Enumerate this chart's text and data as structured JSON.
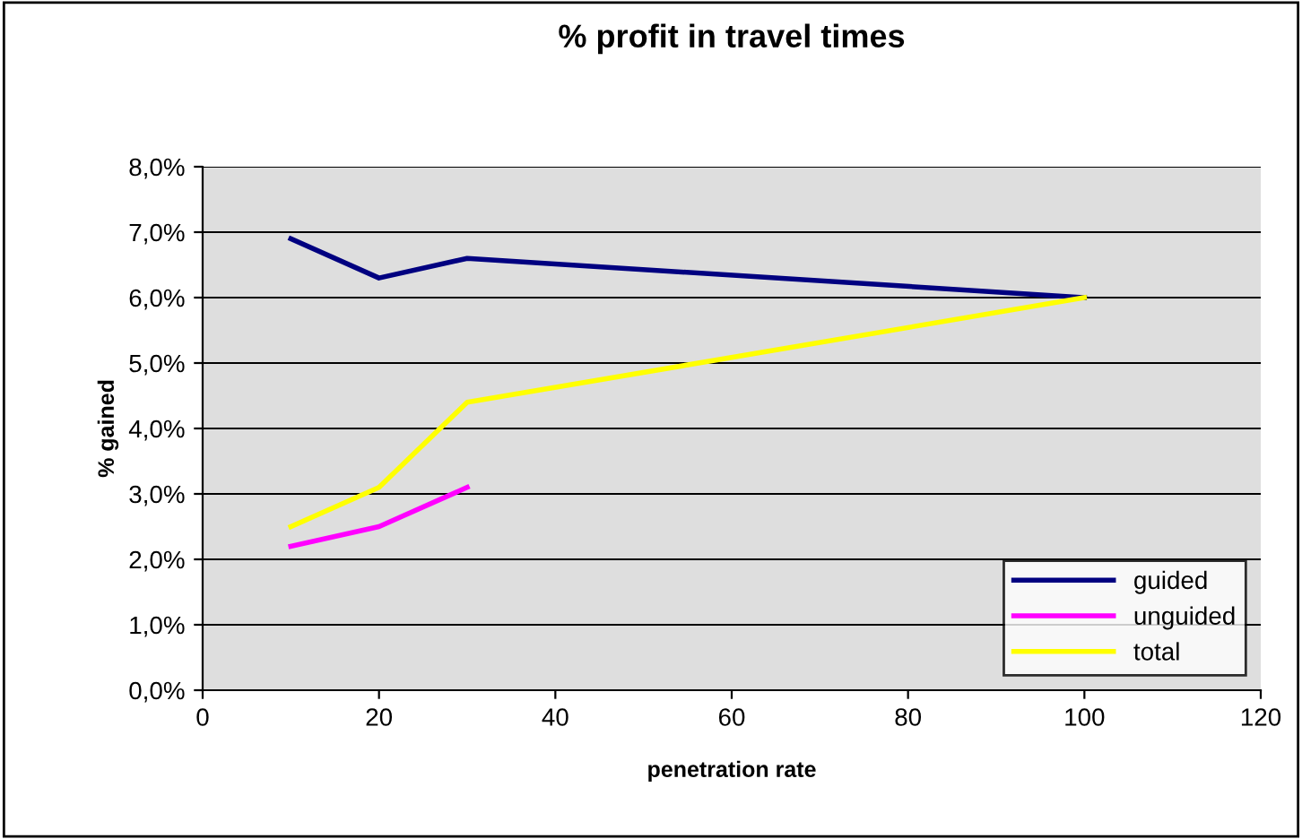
{
  "chart_data": {
    "type": "line",
    "title": "% profit in travel times",
    "xlabel": "penetration rate",
    "ylabel": "% gained",
    "x": [
      10,
      20,
      30,
      100
    ],
    "series": [
      {
        "name": "guided",
        "color": "#000080",
        "values": [
          6.9,
          6.3,
          6.6,
          6.0
        ]
      },
      {
        "name": "unguided",
        "color": "#ff00ff",
        "values": [
          2.2,
          2.5,
          3.1
        ],
        "x": [
          10,
          20,
          30
        ]
      },
      {
        "name": "total",
        "color": "#ffff00",
        "values": [
          2.5,
          3.1,
          4.4,
          6.0
        ]
      }
    ],
    "xlim": [
      0,
      120
    ],
    "xticks": [
      0,
      20,
      40,
      60,
      80,
      100,
      120
    ],
    "ylim": [
      0,
      8
    ],
    "yticks": [
      {
        "value": 0,
        "label": "0,0%"
      },
      {
        "value": 1,
        "label": "1,0%"
      },
      {
        "value": 2,
        "label": "2,0%"
      },
      {
        "value": 3,
        "label": "3,0%"
      },
      {
        "value": 4,
        "label": "4,0%"
      },
      {
        "value": 5,
        "label": "5,0%"
      },
      {
        "value": 6,
        "label": "6,0%"
      },
      {
        "value": 7,
        "label": "7,0%"
      },
      {
        "value": 8,
        "label": "8,0%"
      }
    ],
    "grid": "y",
    "legend": "bottom right",
    "marker": "none",
    "line_style": "solid"
  }
}
